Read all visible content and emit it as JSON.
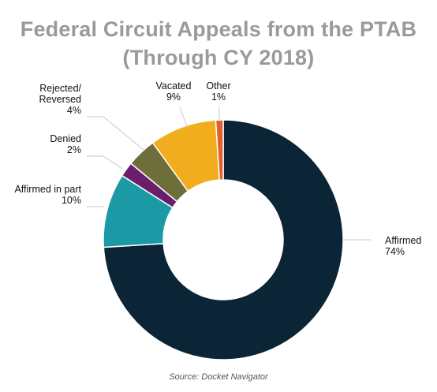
{
  "chart_data": {
    "type": "pie",
    "variant": "donut",
    "title": [
      "Federal Circuit Appeals from the PTAB",
      "(Through CY 2018)"
    ],
    "start_category": "Affirmed",
    "direction": "clockwise",
    "slices": [
      {
        "key": "affirmed",
        "label_lines": [
          "Affirmed"
        ],
        "value_text": "74%",
        "value": 74,
        "color": "#0b2537"
      },
      {
        "key": "affirmed_in_part",
        "label_lines": [
          "Affirmed in part"
        ],
        "value_text": "10%",
        "value": 10,
        "color": "#1b9aa6"
      },
      {
        "key": "denied",
        "label_lines": [
          "Denied"
        ],
        "value_text": "2%",
        "value": 2,
        "color": "#6b1e6b"
      },
      {
        "key": "rejected_reversed",
        "label_lines": [
          "Rejected/",
          "Reversed"
        ],
        "value_text": "4%",
        "value": 4,
        "color": "#6e6e3a"
      },
      {
        "key": "vacated",
        "label_lines": [
          "Vacated"
        ],
        "value_text": "9%",
        "value": 9,
        "color": "#f2ad1e"
      },
      {
        "key": "other",
        "label_lines": [
          "Other"
        ],
        "value_text": "1%",
        "value": 1,
        "color": "#e0612b"
      }
    ],
    "legend": "none",
    "source": "Source: Docket Navigator"
  }
}
